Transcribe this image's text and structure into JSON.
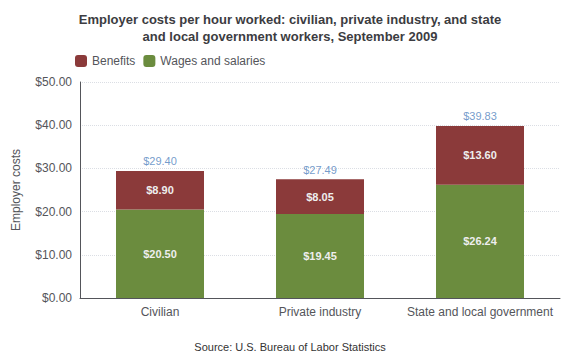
{
  "chart_data": {
    "type": "bar",
    "title": "Employer costs per hour worked: civilian, private industry, and state\nand local government workers, September 2009",
    "categories": [
      "Civilian",
      "Private industry",
      "State and local government"
    ],
    "series": [
      {
        "name": "Wages and salaries",
        "color": "#6b8c3e",
        "values": [
          20.5,
          19.45,
          26.24
        ],
        "value_labels": [
          "$20.50",
          "$19.45",
          "$26.24"
        ]
      },
      {
        "name": "Benefits",
        "color": "#8b3a3a",
        "values": [
          8.9,
          8.05,
          13.6
        ],
        "value_labels": [
          "$8.90",
          "$8.05",
          "$13.60"
        ]
      }
    ],
    "totals": {
      "values": [
        29.4,
        27.49,
        39.83
      ],
      "value_labels": [
        "$29.40",
        "$27.49",
        "$39.83"
      ],
      "color": "#4f81bd"
    },
    "ylabel": "Employer costs",
    "ylim": [
      0,
      50
    ],
    "yticks": [
      {
        "value": 0,
        "label": "$0.00"
      },
      {
        "value": 10,
        "label": "$10.00"
      },
      {
        "value": 20,
        "label": "$20.00"
      },
      {
        "value": 30,
        "label": "$30.00"
      },
      {
        "value": 40,
        "label": "$40.00"
      },
      {
        "value": 50,
        "label": "$50.00"
      }
    ],
    "stacked": true,
    "data_labels": true,
    "grid": true,
    "legend": "upper left",
    "source": "Source: U.S. Bureau of Labor Statistics"
  }
}
